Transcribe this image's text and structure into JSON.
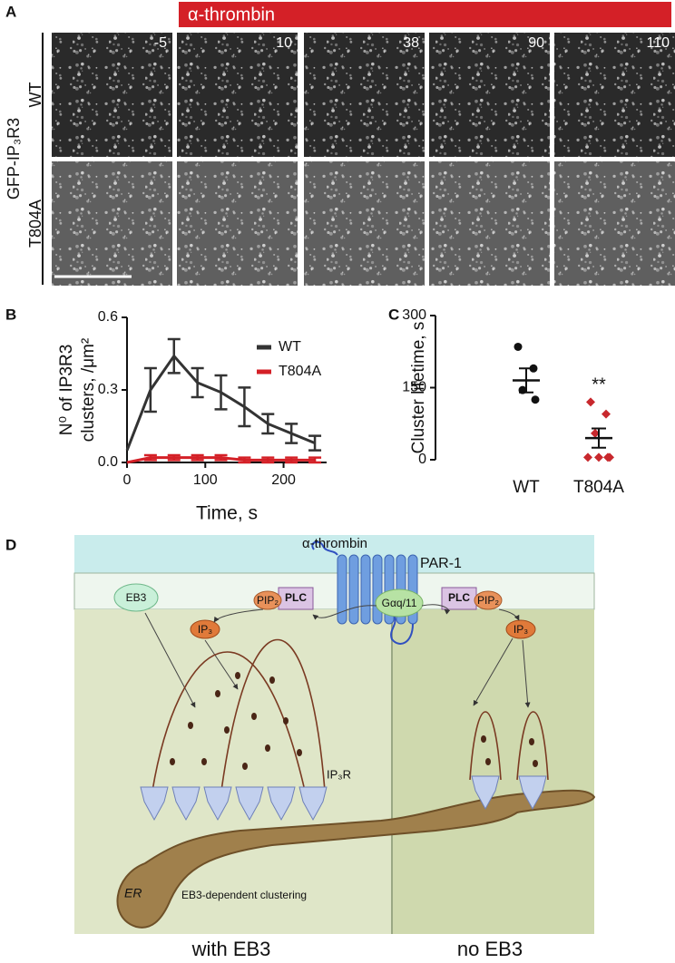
{
  "panel_labels": [
    "A",
    "B",
    "C",
    "D"
  ],
  "panel_a": {
    "treatment": "α-thrombin",
    "construct": "GFP-IP₃R3",
    "rows": [
      "WT",
      "T804A"
    ],
    "times": [
      -5,
      10,
      38,
      90,
      110
    ]
  },
  "chart_data": [
    {
      "type": "line",
      "xlabel": "Time, s",
      "ylabel": [
        "N⁰ of IP3R3",
        "clusters, /μm²"
      ],
      "x": [
        0,
        30,
        60,
        90,
        120,
        150,
        180,
        210,
        240
      ],
      "xlim": [
        0,
        255
      ],
      "xticks": [
        0,
        100,
        200
      ],
      "ylim": [
        0,
        0.6
      ],
      "yticks": [
        {
          "value": 0,
          "label": "0.0"
        },
        0.3,
        0.6
      ],
      "legend": "upper right",
      "series": [
        {
          "name": "WT",
          "color": "#333333",
          "values": [
            0.05,
            0.3,
            0.44,
            0.33,
            0.29,
            0.23,
            0.16,
            0.12,
            0.08
          ],
          "errors": [
            null,
            0.09,
            0.07,
            0.06,
            0.07,
            0.08,
            0.04,
            0.04,
            0.03
          ]
        },
        {
          "name": "T804A",
          "color": "#d42027",
          "values": [
            0.0,
            0.02,
            0.02,
            0.02,
            0.02,
            0.01,
            0.01,
            0.01,
            0.01
          ],
          "errors": [
            null,
            0.01,
            0.01,
            0.01,
            0.01,
            0.01,
            0.01,
            0.01,
            0.01
          ]
        }
      ]
    },
    {
      "type": "dotplot",
      "ylabel": "Cluster lifetime, s",
      "categories": [
        "WT",
        "T804A"
      ],
      "ylim": [
        0,
        300
      ],
      "yticks": [
        0,
        150,
        300
      ],
      "groups": [
        {
          "color": "#111111",
          "marker": "circle",
          "values": [
            235,
            190,
            145,
            125
          ],
          "mean": 165,
          "sem": 25
        },
        {
          "color": "#c8282d",
          "marker": "diamond",
          "values": [
            120,
            95,
            55,
            5,
            5,
            5,
            5
          ],
          "mean": 45,
          "sem": 20,
          "significance": "**"
        }
      ]
    }
  ],
  "diagram": {
    "ligand": "α-thrombin",
    "receptor": "PAR-1",
    "pip_left": "PIP₂",
    "plc_left": "PLC",
    "pip_right": "PIP₂",
    "plc_right": "PLC",
    "g_protein": "Gαq/11",
    "eb3": "EB3",
    "ip3_left": "IP₃",
    "ip3_right": "IP₃",
    "channel": "IP₃R",
    "er": "ER",
    "clustering": "EB3-dependent clustering",
    "left_caption": "with EB3",
    "right_caption": "no EB3"
  }
}
